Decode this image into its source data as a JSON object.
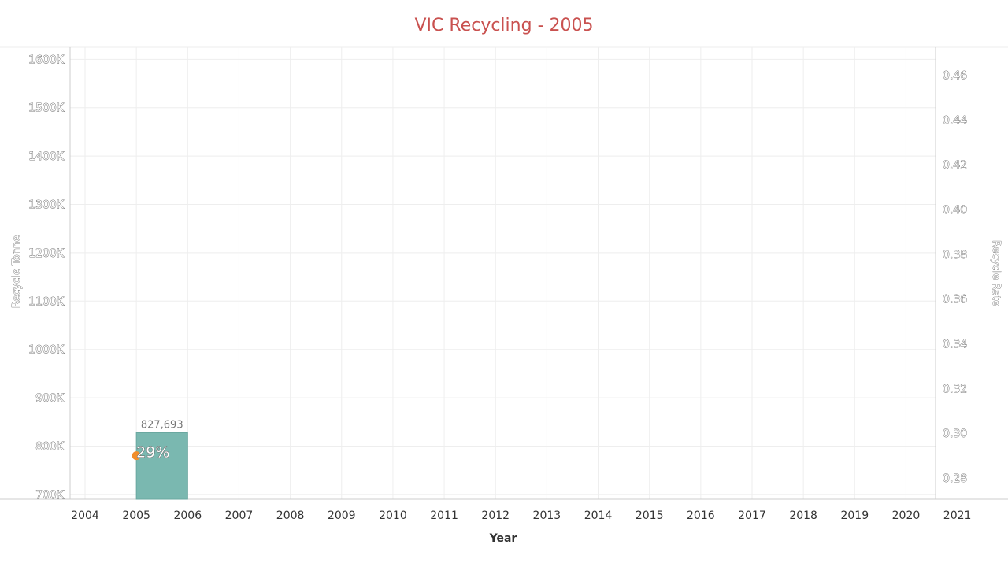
{
  "chart_data": {
    "type": "bar",
    "title": "VIC Recycling - 2005",
    "xlabel": "Year",
    "ylabel": "Recycle Tonne",
    "y2label": "Recycle Rate",
    "x_ticks": [
      "2004",
      "2005",
      "2006",
      "2007",
      "2008",
      "2009",
      "2010",
      "2011",
      "2012",
      "2013",
      "2014",
      "2015",
      "2016",
      "2017",
      "2018",
      "2019",
      "2020",
      "2021"
    ],
    "y_ticks": [
      "700K",
      "800K",
      "900K",
      "1000K",
      "1100K",
      "1200K",
      "1300K",
      "1400K",
      "1500K",
      "1600K"
    ],
    "y2_ticks": [
      "0.28",
      "0.30",
      "0.32",
      "0.34",
      "0.36",
      "0.38",
      "0.40",
      "0.42",
      "0.44",
      "0.46"
    ],
    "ylim": [
      690000,
      1625000
    ],
    "y2lim": [
      0.2705,
      0.4725
    ],
    "series": [
      {
        "type": "bar",
        "x": [
          2005
        ],
        "values": [
          827693
        ],
        "labels": [
          "827,693"
        ]
      },
      {
        "type": "point",
        "x": [
          2005
        ],
        "values": [
          0.29
        ],
        "labels": [
          "29%"
        ]
      }
    ],
    "grid": true,
    "colors": {
      "title": "#c9514f",
      "bar": "#7ab8b0",
      "bar_edge": "#6aa8a0",
      "point": "#f28e2b",
      "grid": "#eeeeee",
      "axis": "#cccccc"
    }
  }
}
